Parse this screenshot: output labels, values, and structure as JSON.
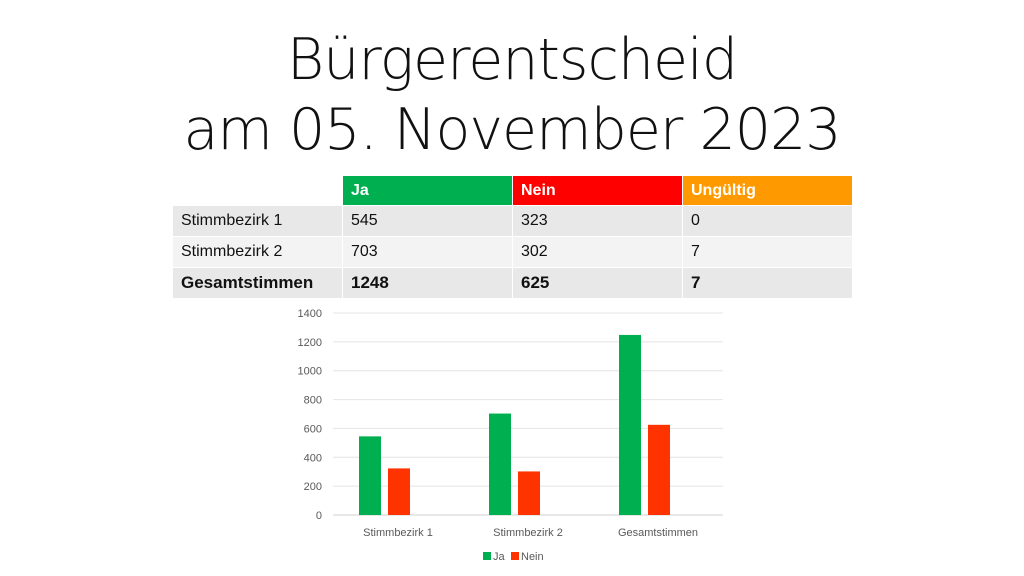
{
  "slide": {
    "title_line1": "Bürgerentscheid",
    "title_line2": "am 05. November 2023"
  },
  "table": {
    "headers": [
      "",
      "Ja",
      "Nein",
      "Ungültig"
    ],
    "header_colors": [
      "#ffffff",
      "#00b050",
      "#ff0000",
      "#ff9900"
    ],
    "rows": [
      [
        "Stimmbezirk 1",
        "545",
        "323",
        "0"
      ],
      [
        "Stimmbezirk 2",
        "703",
        "302",
        "7"
      ],
      [
        "Gesamtstimmen",
        "1248",
        "625",
        "7"
      ]
    ]
  },
  "chart_data": {
    "type": "bar",
    "categories": [
      "Stimmbezirk 1",
      "Stimmbezirk 2",
      "Gesamtstimmen"
    ],
    "series": [
      {
        "name": "Ja",
        "values": [
          545,
          703,
          1248
        ],
        "color": "#00b050"
      },
      {
        "name": "Nein",
        "values": [
          323,
          302,
          625
        ],
        "color": "#ff3300"
      }
    ],
    "ylim": [
      0,
      1400
    ],
    "yticks": [
      0,
      200,
      400,
      600,
      800,
      1000,
      1200,
      1400
    ],
    "grid": true,
    "legend": "bottom"
  }
}
